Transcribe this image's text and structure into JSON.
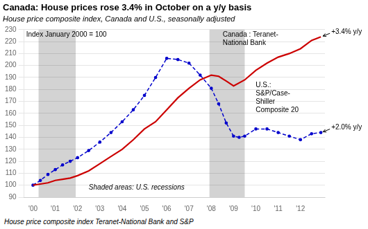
{
  "chart_data": {
    "type": "line",
    "title": "Canada: House prices rose 3.4% in October on a y/y basis",
    "subtitle": "House price composite index, Canada and U.S., seasonally adjusted",
    "footnote": "House price composite index Teranet-National Bank and S&P",
    "ylabel": "Index January 2000 = 100",
    "bands": {
      "ranges": [
        [
          2000.25,
          2001.917
        ],
        [
          2007.917,
          2009.5
        ]
      ],
      "color": "#d3d3d3",
      "label": "Shaded areas: U.S. recessions"
    },
    "xlim": [
      1999.6,
      2013.1
    ],
    "xticks": [
      {
        "value": 2000,
        "label": "'00"
      },
      {
        "value": 2001,
        "label": "'01"
      },
      {
        "value": 2002,
        "label": "'02"
      },
      {
        "value": 2003,
        "label": "'03"
      },
      {
        "value": 2004,
        "label": "'04"
      },
      {
        "value": 2005,
        "label": "'05"
      },
      {
        "value": 2006,
        "label": "'06"
      },
      {
        "value": 2007,
        "label": "'07"
      },
      {
        "value": 2008,
        "label": "'08"
      },
      {
        "value": 2009,
        "label": "'09"
      },
      {
        "value": 2010,
        "label": "'10"
      },
      {
        "value": 2011,
        "label": "'11"
      },
      {
        "value": 2012,
        "label": "'12"
      }
    ],
    "ylim": [
      90,
      230
    ],
    "yticks": [
      90,
      100,
      110,
      120,
      130,
      140,
      150,
      160,
      170,
      180,
      190,
      200,
      210,
      220,
      230
    ],
    "grid": "y",
    "series": [
      {
        "name": "Canada : Teranet-\nNational Bank",
        "color": "#cc0000",
        "line_style": "solid",
        "marker": "none",
        "x": [
          2000.0,
          2000.33,
          2000.67,
          2001.0,
          2001.33,
          2001.67,
          2002.0,
          2002.5,
          2003.0,
          2003.5,
          2004.0,
          2004.5,
          2005.0,
          2005.5,
          2006.0,
          2006.5,
          2007.0,
          2007.5,
          2008.0,
          2008.33,
          2008.67,
          2009.0,
          2009.5,
          2010.0,
          2010.5,
          2011.0,
          2011.5,
          2012.0,
          2012.5,
          2012.917
        ],
        "values": [
          100,
          101,
          102,
          104,
          105,
          106,
          108,
          112,
          118,
          124,
          130,
          138,
          147,
          153,
          163,
          173,
          181,
          188,
          192,
          191,
          187,
          183,
          188,
          196,
          202,
          207,
          210,
          214,
          221,
          224
        ]
      },
      {
        "name": "U.S.:\nS&P/Case-\nShiller\nComposite 20",
        "color": "#0000cc",
        "line_style": "dashed",
        "marker": "circle",
        "x": [
          2000.0,
          2000.33,
          2000.67,
          2001.0,
          2001.33,
          2001.67,
          2002.0,
          2002.5,
          2003.0,
          2003.5,
          2004.0,
          2004.5,
          2005.0,
          2005.5,
          2006.0,
          2006.5,
          2007.0,
          2007.5,
          2008.0,
          2008.33,
          2008.67,
          2009.0,
          2009.25,
          2009.5,
          2010.0,
          2010.5,
          2011.0,
          2011.5,
          2012.0,
          2012.5,
          2012.917
        ],
        "values": [
          100,
          104,
          109,
          113,
          117,
          120,
          123,
          129,
          136,
          144,
          153,
          163,
          175,
          190,
          206,
          205,
          202,
          192,
          181,
          168,
          152,
          141,
          140,
          141,
          147,
          147,
          144,
          141,
          138,
          143,
          144
        ]
      }
    ],
    "annotations": [
      {
        "text": "+3.4% y/y",
        "x": 2012.917,
        "y": 224
      },
      {
        "text": "+2.0% y/y",
        "x": 2012.917,
        "y": 144
      }
    ]
  }
}
